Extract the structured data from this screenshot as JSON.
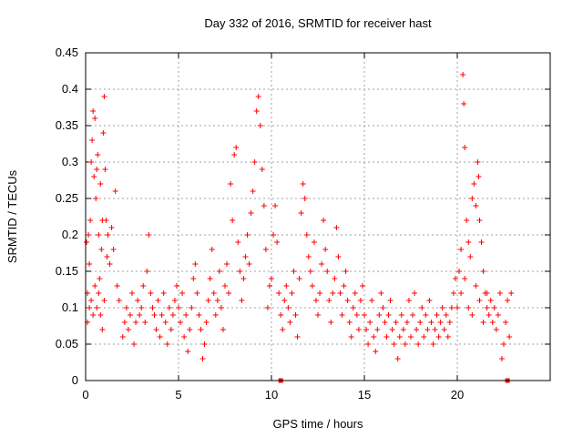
{
  "chart_data": {
    "type": "scatter",
    "title": "Day 332 of 2016, SRMTID for receiver hast",
    "xlabel": "GPS time / hours",
    "ylabel": "SRMTID / TECUs",
    "xlim": [
      0,
      25
    ],
    "ylim": [
      0,
      0.45
    ],
    "x_ticks": [
      0,
      5,
      10,
      15,
      20
    ],
    "x_tick_labels": [
      "0",
      "5",
      "10",
      "15",
      "20"
    ],
    "y_ticks": [
      0,
      0.05,
      0.1,
      0.15,
      0.2,
      0.25,
      0.3,
      0.35,
      0.4,
      0.45
    ],
    "y_tick_labels": [
      "0",
      "0.05",
      "0.1",
      "0.15",
      "0.2",
      "0.25",
      "0.3",
      "0.35",
      "0.4",
      "0.45"
    ],
    "grid": true,
    "legend": "none",
    "marker": "plus",
    "series": [
      {
        "color": "#ff0000",
        "points": [
          [
            0.05,
            0.19
          ],
          [
            0.1,
            0.12
          ],
          [
            0.15,
            0.2
          ],
          [
            0.2,
            0.16
          ],
          [
            0.25,
            0.22
          ],
          [
            0.3,
            0.3
          ],
          [
            0.35,
            0.33
          ],
          [
            0.4,
            0.37
          ],
          [
            0.45,
            0.28
          ],
          [
            0.5,
            0.36
          ],
          [
            0.55,
            0.25
          ],
          [
            0.6,
            0.29
          ],
          [
            0.65,
            0.31
          ],
          [
            0.7,
            0.2
          ],
          [
            0.75,
            0.14
          ],
          [
            0.8,
            0.27
          ],
          [
            0.85,
            0.18
          ],
          [
            0.9,
            0.22
          ],
          [
            0.95,
            0.34
          ],
          [
            1.0,
            0.39
          ],
          [
            1.05,
            0.29
          ],
          [
            1.1,
            0.22
          ],
          [
            1.15,
            0.17
          ],
          [
            1.2,
            0.2
          ],
          [
            1.3,
            0.16
          ],
          [
            1.4,
            0.21
          ],
          [
            1.5,
            0.18
          ],
          [
            1.6,
            0.26
          ],
          [
            1.7,
            0.13
          ],
          [
            1.8,
            0.11
          ],
          [
            0.1,
            0.08
          ],
          [
            0.2,
            0.1
          ],
          [
            0.3,
            0.11
          ],
          [
            0.4,
            0.09
          ],
          [
            0.5,
            0.13
          ],
          [
            0.6,
            0.1
          ],
          [
            0.7,
            0.12
          ],
          [
            0.8,
            0.09
          ],
          [
            0.9,
            0.07
          ],
          [
            1.0,
            0.11
          ],
          [
            2.0,
            0.06
          ],
          [
            2.1,
            0.08
          ],
          [
            2.2,
            0.1
          ],
          [
            2.3,
            0.07
          ],
          [
            2.4,
            0.09
          ],
          [
            2.5,
            0.12
          ],
          [
            2.6,
            0.05
          ],
          [
            2.7,
            0.08
          ],
          [
            2.8,
            0.11
          ],
          [
            2.9,
            0.09
          ],
          [
            3.0,
            0.1
          ],
          [
            3.1,
            0.13
          ],
          [
            3.2,
            0.08
          ],
          [
            3.3,
            0.15
          ],
          [
            3.4,
            0.2
          ],
          [
            3.5,
            0.12
          ],
          [
            3.6,
            0.1
          ],
          [
            3.7,
            0.09
          ],
          [
            3.8,
            0.07
          ],
          [
            3.9,
            0.11
          ],
          [
            4.0,
            0.06
          ],
          [
            4.1,
            0.09
          ],
          [
            4.2,
            0.12
          ],
          [
            4.3,
            0.08
          ],
          [
            4.4,
            0.05
          ],
          [
            4.5,
            0.1
          ],
          [
            4.6,
            0.07
          ],
          [
            4.7,
            0.09
          ],
          [
            4.8,
            0.11
          ],
          [
            4.9,
            0.13
          ],
          [
            5.0,
            0.1
          ],
          [
            5.1,
            0.08
          ],
          [
            5.2,
            0.12
          ],
          [
            5.3,
            0.06
          ],
          [
            5.4,
            0.09
          ],
          [
            5.5,
            0.04
          ],
          [
            5.6,
            0.07
          ],
          [
            5.7,
            0.1
          ],
          [
            5.8,
            0.14
          ],
          [
            5.9,
            0.16
          ],
          [
            6.0,
            0.12
          ],
          [
            6.1,
            0.09
          ],
          [
            6.2,
            0.07
          ],
          [
            6.3,
            0.03
          ],
          [
            6.4,
            0.05
          ],
          [
            6.5,
            0.08
          ],
          [
            6.6,
            0.11
          ],
          [
            6.7,
            0.14
          ],
          [
            6.8,
            0.18
          ],
          [
            6.9,
            0.12
          ],
          [
            7.0,
            0.09
          ],
          [
            7.1,
            0.11
          ],
          [
            7.2,
            0.15
          ],
          [
            7.3,
            0.1
          ],
          [
            7.4,
            0.07
          ],
          [
            7.5,
            0.13
          ],
          [
            7.6,
            0.16
          ],
          [
            7.7,
            0.12
          ],
          [
            7.8,
            0.27
          ],
          [
            7.9,
            0.22
          ],
          [
            8.0,
            0.31
          ],
          [
            8.1,
            0.32
          ],
          [
            8.2,
            0.19
          ],
          [
            8.3,
            0.15
          ],
          [
            8.4,
            0.11
          ],
          [
            8.5,
            0.14
          ],
          [
            8.6,
            0.17
          ],
          [
            8.7,
            0.2
          ],
          [
            8.8,
            0.16
          ],
          [
            8.9,
            0.23
          ],
          [
            9.0,
            0.26
          ],
          [
            9.1,
            0.3
          ],
          [
            9.2,
            0.37
          ],
          [
            9.3,
            0.39
          ],
          [
            9.4,
            0.35
          ],
          [
            9.5,
            0.29
          ],
          [
            9.6,
            0.24
          ],
          [
            9.7,
            0.18
          ],
          [
            9.8,
            0.1
          ],
          [
            9.9,
            0.13
          ],
          [
            10.0,
            0.14
          ],
          [
            10.1,
            0.2
          ],
          [
            10.2,
            0.24
          ],
          [
            10.3,
            0.19
          ],
          [
            10.4,
            0.12
          ],
          [
            10.5,
            0.09
          ],
          [
            10.6,
            0.07
          ],
          [
            10.7,
            0.11
          ],
          [
            10.8,
            0.13
          ],
          [
            10.9,
            0.1
          ],
          [
            11.0,
            0.08
          ],
          [
            11.1,
            0.12
          ],
          [
            11.2,
            0.15
          ],
          [
            11.3,
            0.09
          ],
          [
            11.4,
            0.06
          ],
          [
            11.5,
            0.14
          ],
          [
            11.6,
            0.23
          ],
          [
            11.7,
            0.27
          ],
          [
            11.8,
            0.25
          ],
          [
            11.9,
            0.2
          ],
          [
            12.0,
            0.17
          ],
          [
            12.1,
            0.15
          ],
          [
            12.2,
            0.13
          ],
          [
            12.3,
            0.19
          ],
          [
            12.4,
            0.11
          ],
          [
            12.5,
            0.09
          ],
          [
            12.6,
            0.12
          ],
          [
            12.7,
            0.16
          ],
          [
            12.8,
            0.22
          ],
          [
            12.9,
            0.18
          ],
          [
            13.0,
            0.15
          ],
          [
            13.1,
            0.11
          ],
          [
            13.2,
            0.08
          ],
          [
            13.3,
            0.12
          ],
          [
            13.4,
            0.14
          ],
          [
            13.5,
            0.21
          ],
          [
            13.6,
            0.17
          ],
          [
            13.7,
            0.12
          ],
          [
            13.8,
            0.09
          ],
          [
            13.9,
            0.13
          ],
          [
            14.0,
            0.15
          ],
          [
            14.1,
            0.11
          ],
          [
            14.2,
            0.08
          ],
          [
            14.3,
            0.06
          ],
          [
            14.4,
            0.1
          ],
          [
            14.5,
            0.12
          ],
          [
            14.6,
            0.09
          ],
          [
            14.7,
            0.07
          ],
          [
            14.8,
            0.11
          ],
          [
            14.9,
            0.13
          ],
          [
            15.0,
            0.09
          ],
          [
            15.1,
            0.07
          ],
          [
            15.2,
            0.05
          ],
          [
            15.3,
            0.08
          ],
          [
            15.4,
            0.11
          ],
          [
            15.5,
            0.06
          ],
          [
            15.6,
            0.04
          ],
          [
            15.7,
            0.07
          ],
          [
            15.8,
            0.09
          ],
          [
            15.9,
            0.12
          ],
          [
            16.0,
            0.1
          ],
          [
            16.1,
            0.08
          ],
          [
            16.2,
            0.06
          ],
          [
            16.3,
            0.09
          ],
          [
            16.4,
            0.11
          ],
          [
            16.5,
            0.07
          ],
          [
            16.6,
            0.05
          ],
          [
            16.7,
            0.08
          ],
          [
            16.8,
            0.03
          ],
          [
            16.9,
            0.06
          ],
          [
            17.0,
            0.09
          ],
          [
            17.1,
            0.07
          ],
          [
            17.2,
            0.05
          ],
          [
            17.3,
            0.08
          ],
          [
            17.4,
            0.11
          ],
          [
            17.5,
            0.06
          ],
          [
            17.6,
            0.09
          ],
          [
            17.7,
            0.12
          ],
          [
            17.8,
            0.07
          ],
          [
            17.9,
            0.05
          ],
          [
            18.0,
            0.08
          ],
          [
            18.1,
            0.1
          ],
          [
            18.2,
            0.06
          ],
          [
            18.3,
            0.09
          ],
          [
            18.4,
            0.07
          ],
          [
            18.5,
            0.11
          ],
          [
            18.6,
            0.08
          ],
          [
            18.7,
            0.05
          ],
          [
            18.8,
            0.07
          ],
          [
            18.9,
            0.09
          ],
          [
            19.0,
            0.06
          ],
          [
            19.1,
            0.08
          ],
          [
            19.2,
            0.1
          ],
          [
            19.3,
            0.07
          ],
          [
            19.4,
            0.09
          ],
          [
            19.5,
            0.06
          ],
          [
            19.6,
            0.08
          ],
          [
            19.7,
            0.1
          ],
          [
            19.8,
            0.12
          ],
          [
            19.9,
            0.14
          ],
          [
            20.0,
            0.1
          ],
          [
            20.1,
            0.15
          ],
          [
            20.2,
            0.18
          ],
          [
            20.3,
            0.42
          ],
          [
            20.35,
            0.38
          ],
          [
            20.4,
            0.32
          ],
          [
            20.5,
            0.22
          ],
          [
            20.6,
            0.19
          ],
          [
            20.7,
            0.17
          ],
          [
            20.8,
            0.25
          ],
          [
            20.9,
            0.27
          ],
          [
            21.0,
            0.24
          ],
          [
            21.1,
            0.3
          ],
          [
            21.15,
            0.28
          ],
          [
            21.2,
            0.22
          ],
          [
            21.3,
            0.19
          ],
          [
            21.4,
            0.15
          ],
          [
            21.5,
            0.12
          ],
          [
            21.6,
            0.1
          ],
          [
            21.7,
            0.09
          ],
          [
            21.8,
            0.11
          ],
          [
            21.9,
            0.08
          ],
          [
            22.0,
            0.1
          ],
          [
            22.1,
            0.07
          ],
          [
            22.2,
            0.09
          ],
          [
            22.3,
            0.12
          ],
          [
            22.4,
            0.03
          ],
          [
            22.5,
            0.05
          ],
          [
            22.6,
            0.08
          ],
          [
            22.7,
            0.11
          ],
          [
            22.8,
            0.06
          ],
          [
            22.9,
            0.12
          ],
          [
            20.2,
            0.12
          ],
          [
            20.4,
            0.14
          ],
          [
            20.6,
            0.1
          ],
          [
            20.8,
            0.09
          ],
          [
            21.0,
            0.13
          ],
          [
            21.2,
            0.11
          ],
          [
            21.4,
            0.08
          ],
          [
            21.6,
            0.12
          ]
        ]
      }
    ],
    "baseline_markers": [
      10.5,
      22.7
    ]
  }
}
